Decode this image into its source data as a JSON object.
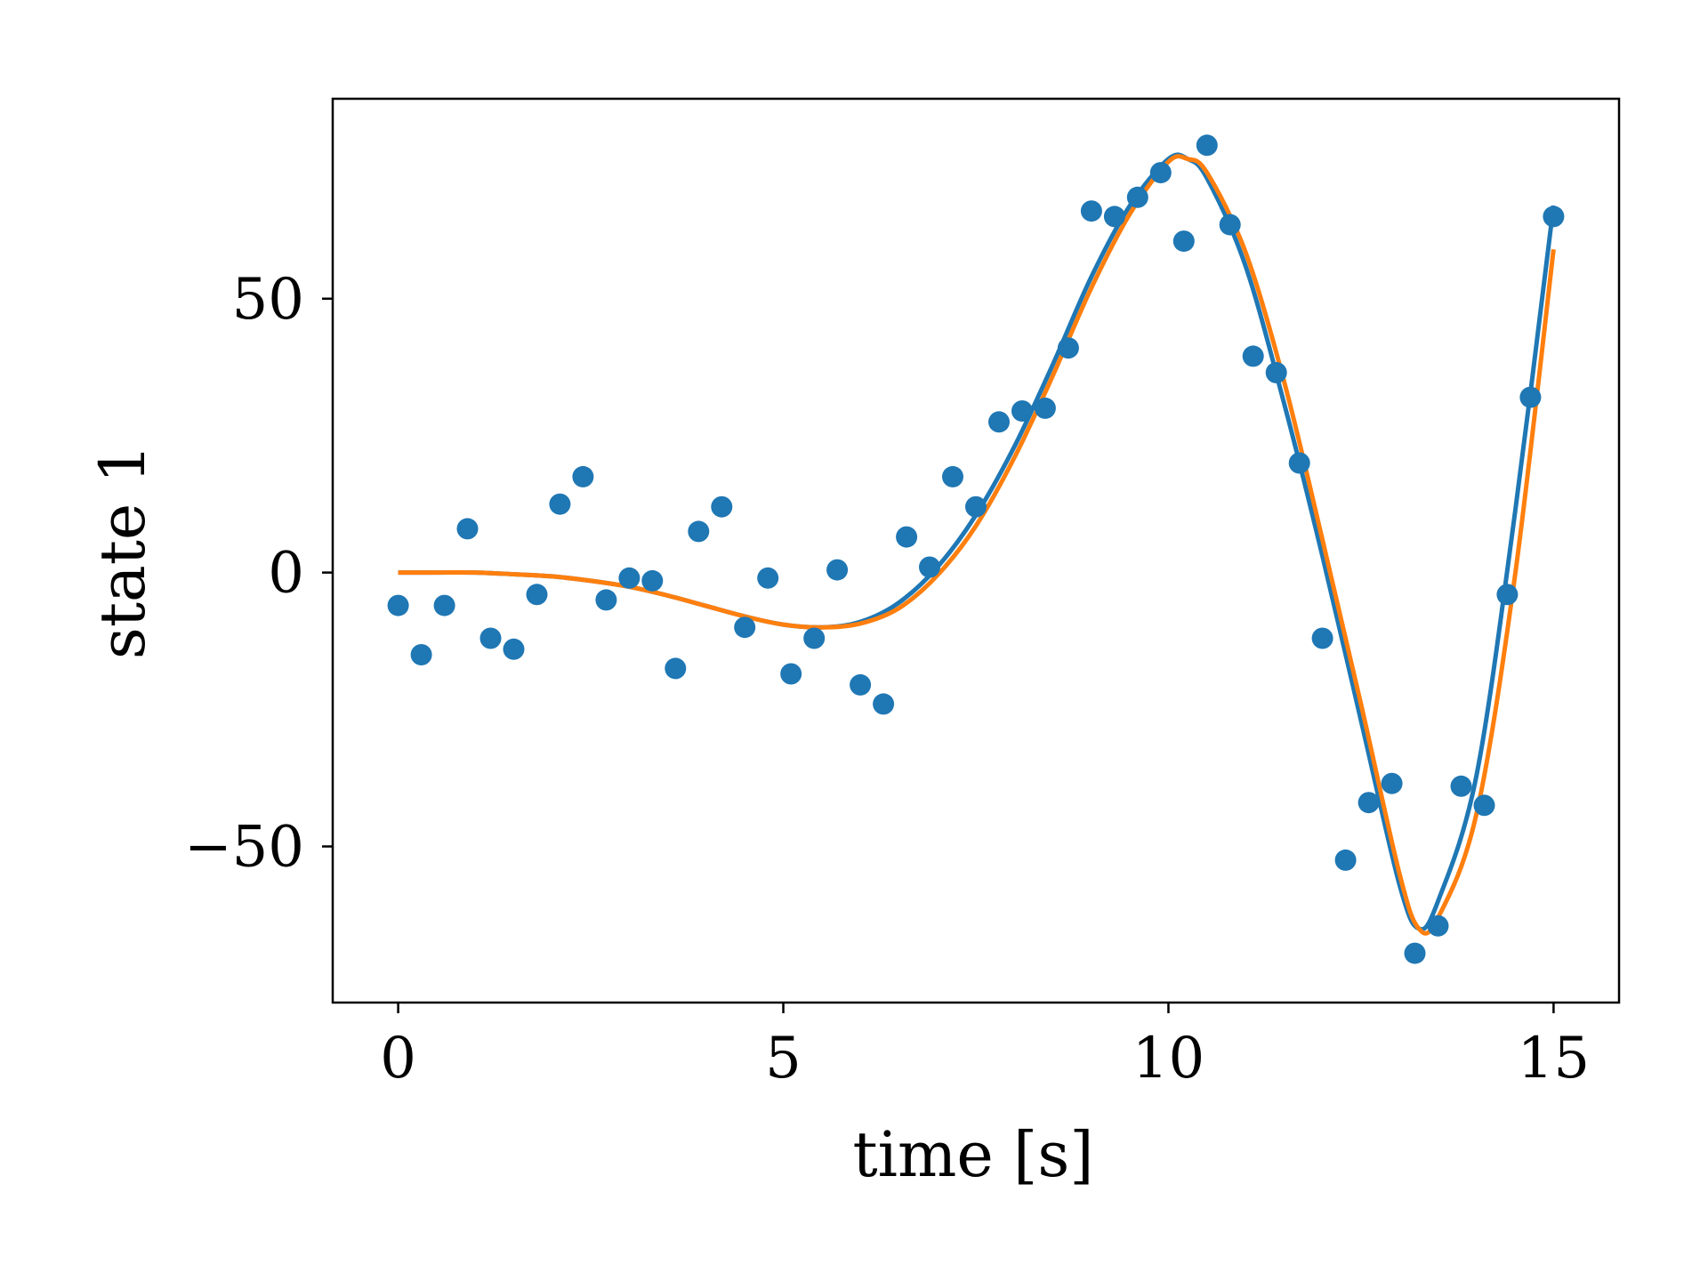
{
  "chart_data": {
    "type": "scatter",
    "xlabel": "time [s]",
    "ylabel": "state 1",
    "xlim": [
      -0.85,
      15.85
    ],
    "ylim": [
      -78.5,
      86.5
    ],
    "xticks": [
      0,
      5,
      10,
      15
    ],
    "xtick_labels": [
      "0",
      "5",
      "10",
      "15"
    ],
    "yticks": [
      -50,
      0,
      50
    ],
    "ytick_labels": [
      "−50",
      "0",
      "50"
    ],
    "grid": false,
    "legend": "none",
    "colors": {
      "observations": "#1f77b4",
      "fit_1": "#1f77b4",
      "fit_2": "#ff7f0e",
      "frame": "#000000"
    },
    "scatter": {
      "x": [
        0,
        0.3,
        0.6,
        0.9,
        1.2,
        1.5,
        1.8,
        2.1,
        2.4,
        2.7,
        3.0,
        3.3,
        3.6,
        3.9,
        4.2,
        4.5,
        4.8,
        5.1,
        5.4,
        5.7,
        6.0,
        6.3,
        6.6,
        6.9,
        7.2,
        7.5,
        7.8,
        8.1,
        8.4,
        8.7,
        9.0,
        9.3,
        9.6,
        9.9,
        10.2,
        10.5,
        10.8,
        11.1,
        11.4,
        11.7,
        12.0,
        12.3,
        12.6,
        12.9,
        13.2,
        13.5,
        13.8,
        14.1,
        14.4,
        14.7,
        15.0
      ],
      "y": [
        -6,
        -15,
        -6,
        8,
        -12,
        -14,
        -4,
        12.5,
        17.5,
        -5,
        -1,
        -1.5,
        -17.5,
        7.5,
        12,
        -10,
        -1,
        -18.5,
        -12,
        0.5,
        -20.5,
        -24,
        6.5,
        1,
        17.5,
        12,
        27.5,
        29.5,
        30,
        41,
        66,
        65,
        68.5,
        73,
        60.5,
        78,
        63.5,
        39.5,
        36.5,
        20,
        -12,
        -52.5,
        -42,
        -38.5,
        -69.5,
        -64.5,
        -39,
        -42.5,
        -4,
        32,
        65
      ]
    },
    "series": [
      {
        "x": [
          0,
          0.5,
          1,
          1.5,
          2,
          2.5,
          3,
          3.5,
          4,
          4.5,
          5,
          5.5,
          6,
          6.5,
          7,
          7.5,
          8,
          8.5,
          9,
          9.5,
          10,
          10.25,
          10.5,
          11,
          11.5,
          12,
          12.5,
          13,
          13.25,
          13.5,
          14,
          14.5,
          15
        ],
        "y": [
          0,
          0,
          0,
          -0.3,
          -0.7,
          -1.5,
          -2.6,
          -4.2,
          -6.1,
          -8,
          -9.5,
          -10,
          -9,
          -5.5,
          1,
          10.5,
          23,
          38,
          54,
          67,
          75.5,
          75.5,
          72,
          56,
          31,
          3,
          -27,
          -57,
          -65,
          -60,
          -37,
          11,
          67
        ]
      },
      {
        "x": [
          0,
          0.5,
          1,
          1.5,
          2,
          2.5,
          3,
          3.5,
          4,
          4.5,
          5,
          5.5,
          6,
          6.5,
          7,
          7.5,
          8,
          8.5,
          9,
          9.5,
          10,
          10.25,
          10.5,
          11,
          11.5,
          12,
          12.5,
          13,
          13.25,
          13.5,
          14,
          14.5,
          15
        ],
        "y": [
          0,
          0,
          0,
          -0.3,
          -0.7,
          -1.5,
          -2.6,
          -4.2,
          -6.1,
          -8,
          -9.5,
          -10,
          -9.3,
          -6.5,
          -0.5,
          8.5,
          21,
          36,
          52,
          65.5,
          75,
          75.5,
          73,
          58.5,
          35,
          6,
          -24,
          -55,
          -65,
          -63,
          -44,
          -0.5,
          59
        ]
      }
    ]
  }
}
